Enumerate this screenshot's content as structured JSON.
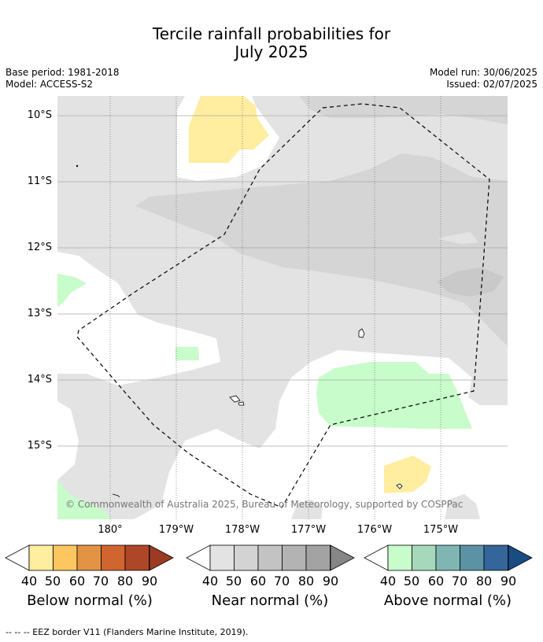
{
  "title_line1": "Tercile rainfall probabilities for",
  "title_line2": "July 2025",
  "base_period": "Base period: 1981-2018",
  "model": "Model: ACCESS-S2",
  "model_run": "Model run: 30/06/2025",
  "issued": "Issued: 02/07/2025",
  "lat_ticks": [
    "10°S",
    "11°S",
    "12°S",
    "13°S",
    "14°S",
    "15°S"
  ],
  "lon_ticks": [
    "180°",
    "179°W",
    "178°W",
    "177°W",
    "176°W",
    "175°W"
  ],
  "copyright": "© Commonwealth of Australia 2025, Bureau of Meteorology, supported by COSPPac",
  "colorbars": {
    "below": {
      "title": "Below normal (%)",
      "labels": [
        "40",
        "50",
        "60",
        "70",
        "80",
        "90"
      ],
      "colors": [
        "#ffffff",
        "#ffeda0",
        "#fec660",
        "#e39344",
        "#d0652f",
        "#ae4727",
        "#9c3b22"
      ]
    },
    "near": {
      "title": "Near normal (%)",
      "labels": [
        "40",
        "50",
        "60",
        "70",
        "80",
        "90"
      ],
      "colors": [
        "#ffffff",
        "#e3e3e3",
        "#d3d3d3",
        "#c3c3c3",
        "#b3b3b3",
        "#a3a3a3",
        "#868686"
      ]
    },
    "above": {
      "title": "Above normal (%)",
      "labels": [
        "40",
        "50",
        "60",
        "70",
        "80",
        "90"
      ],
      "colors": [
        "#ffffff",
        "#c8fccb",
        "#a6d9bc",
        "#7fb6b4",
        "#5b92a4",
        "#34669c",
        "#184c82"
      ]
    }
  },
  "footer": "--  --  -- EEZ border V11 (Flanders Marine Institute, 2019)."
}
